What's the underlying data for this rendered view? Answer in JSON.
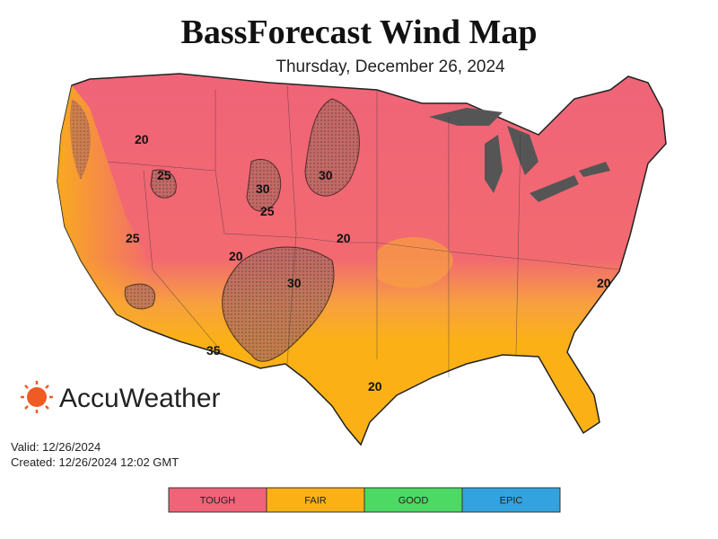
{
  "header": {
    "title": "BassForecast Wind Map",
    "subtitle": "Thursday, December 26, 2024"
  },
  "logo": {
    "text": "AccuWeather"
  },
  "info": {
    "valid": "Valid: 12/26/2024",
    "created": "Created: 12/26/2024 12:02 GMT"
  },
  "contour_labels": [
    "25",
    "20",
    "30",
    "30",
    "25",
    "25",
    "20",
    "30",
    "20",
    "35",
    "20",
    "20"
  ],
  "legend": [
    {
      "label": "TOUGH",
      "color": "#f06478"
    },
    {
      "label": "FAIR",
      "color": "#fbb116"
    },
    {
      "label": "GOOD",
      "color": "#4cd964"
    },
    {
      "label": "EPIC",
      "color": "#33a3e0"
    }
  ]
}
